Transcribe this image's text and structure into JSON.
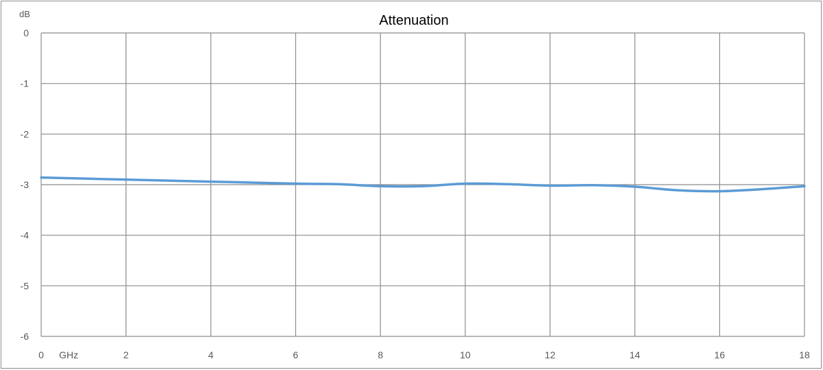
{
  "chart_data": {
    "type": "line",
    "title": "Attenuation",
    "ylabel": "dB",
    "xlabel": "GHz",
    "xlim": [
      0,
      18
    ],
    "ylim": [
      -6,
      0
    ],
    "x_ticks": [
      "0",
      "2",
      "4",
      "6",
      "8",
      "10",
      "12",
      "14",
      "16",
      "18"
    ],
    "y_ticks": [
      "0",
      "-1",
      "-2",
      "-3",
      "-4",
      "-5",
      "-6"
    ],
    "grid": true,
    "series": [
      {
        "color": "#5b9bd5",
        "x": [
          0,
          2,
          4,
          6,
          7,
          8,
          9,
          10,
          11,
          12,
          13,
          14,
          15,
          16,
          17,
          18
        ],
        "y": [
          -2.86,
          -2.9,
          -2.94,
          -2.98,
          -2.99,
          -3.03,
          -3.03,
          -2.98,
          -2.99,
          -3.02,
          -3.01,
          -3.04,
          -3.11,
          -3.13,
          -3.09,
          -3.03
        ]
      }
    ],
    "colors": {
      "grid": "#8c8c8c",
      "frame": "#8c8c8c",
      "line": "#5b9bd5"
    }
  }
}
